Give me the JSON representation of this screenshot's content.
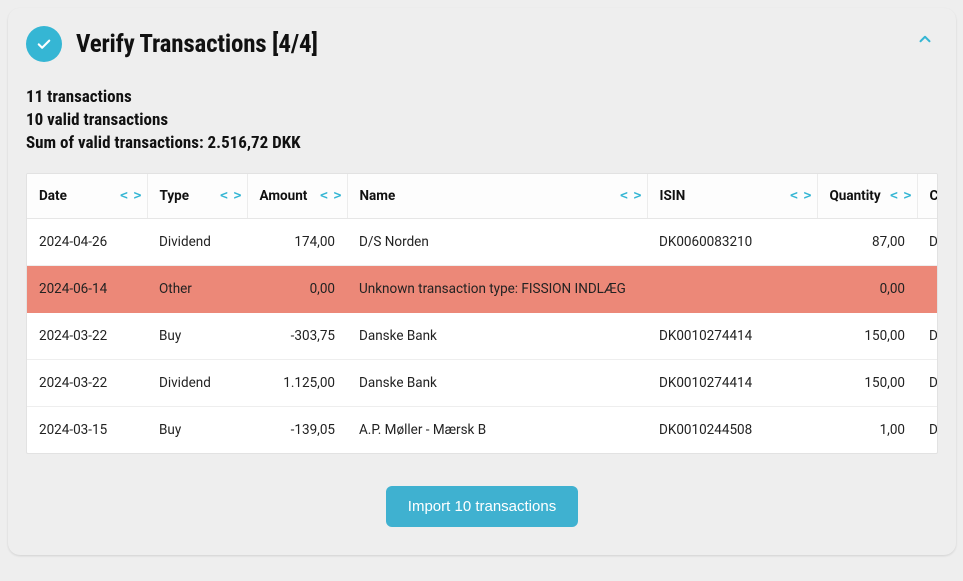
{
  "header": {
    "title": "Verify Transactions [4/4]"
  },
  "summary": {
    "count_line": "11 transactions",
    "valid_line": "10 valid transactions",
    "sum_line": "Sum of valid transactions: 2.516,72 DKK"
  },
  "button": {
    "import_label": "Import 10 transactions"
  },
  "colors": {
    "accent": "#35b6d4",
    "button": "#3fb1d0",
    "invalid_row": "#ec8878",
    "panel_bg": "#eeeeee",
    "border": "#e6e6e6"
  },
  "table": {
    "columns": [
      {
        "key": "date",
        "label": "Date",
        "align": "left"
      },
      {
        "key": "type",
        "label": "Type",
        "align": "left"
      },
      {
        "key": "amount",
        "label": "Amount",
        "align": "right"
      },
      {
        "key": "name",
        "label": "Name",
        "align": "left"
      },
      {
        "key": "isin",
        "label": "ISIN",
        "align": "left"
      },
      {
        "key": "qty",
        "label": "Quantity",
        "align": "right"
      },
      {
        "key": "curr",
        "label": "C",
        "align": "left"
      }
    ],
    "rows": [
      {
        "date": "2024-04-26",
        "type": "Dividend",
        "amount": "174,00",
        "name": "D/S Norden",
        "isin": "DK0060083210",
        "qty": "87,00",
        "curr": "DK",
        "invalid": false
      },
      {
        "date": "2024-06-14",
        "type": "Other",
        "amount": "0,00",
        "name": "Unknown transaction type: FISSION INDLÆG",
        "isin": "",
        "qty": "0,00",
        "curr": "",
        "invalid": true
      },
      {
        "date": "2024-03-22",
        "type": "Buy",
        "amount": "-303,75",
        "name": "Danske Bank",
        "isin": "DK0010274414",
        "qty": "150,00",
        "curr": "DK",
        "invalid": false
      },
      {
        "date": "2024-03-22",
        "type": "Dividend",
        "amount": "1.125,00",
        "name": "Danske Bank",
        "isin": "DK0010274414",
        "qty": "150,00",
        "curr": "DK",
        "invalid": false
      },
      {
        "date": "2024-03-15",
        "type": "Buy",
        "amount": "-139,05",
        "name": "A.P. Møller - Mærsk B",
        "isin": "DK0010244508",
        "qty": "1,00",
        "curr": "DK",
        "invalid": false
      }
    ]
  }
}
